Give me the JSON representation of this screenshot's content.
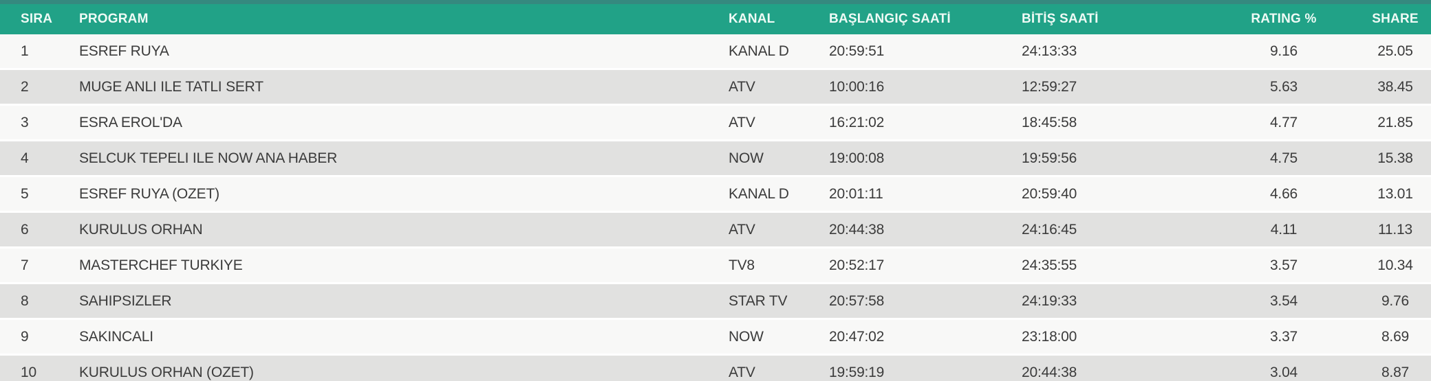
{
  "table": {
    "columns": [
      {
        "key": "sira",
        "label": "SIRA",
        "align": "left"
      },
      {
        "key": "program",
        "label": "PROGRAM",
        "align": "left"
      },
      {
        "key": "kanal",
        "label": "KANAL",
        "align": "left"
      },
      {
        "key": "start",
        "label": "BAŞLANGIÇ SAATİ",
        "align": "left"
      },
      {
        "key": "end",
        "label": "BİTİŞ SAATİ",
        "align": "left"
      },
      {
        "key": "rating",
        "label": "RATING %",
        "align": "center"
      },
      {
        "key": "share",
        "label": "SHARE",
        "align": "center"
      }
    ],
    "rows": [
      {
        "sira": "1",
        "program": "ESREF RUYA",
        "kanal": "KANAL D",
        "start": "20:59:51",
        "end": "24:13:33",
        "rating": "9.16",
        "share": "25.05"
      },
      {
        "sira": "2",
        "program": "MUGE ANLI ILE TATLI SERT",
        "kanal": "ATV",
        "start": "10:00:16",
        "end": "12:59:27",
        "rating": "5.63",
        "share": "38.45"
      },
      {
        "sira": "3",
        "program": "ESRA EROL'DA",
        "kanal": "ATV",
        "start": "16:21:02",
        "end": "18:45:58",
        "rating": "4.77",
        "share": "21.85"
      },
      {
        "sira": "4",
        "program": "SELCUK TEPELI ILE NOW ANA HABER",
        "kanal": "NOW",
        "start": "19:00:08",
        "end": "19:59:56",
        "rating": "4.75",
        "share": "15.38"
      },
      {
        "sira": "5",
        "program": "ESREF RUYA (OZET)",
        "kanal": "KANAL D",
        "start": "20:01:11",
        "end": "20:59:40",
        "rating": "4.66",
        "share": "13.01"
      },
      {
        "sira": "6",
        "program": "KURULUS ORHAN",
        "kanal": "ATV",
        "start": "20:44:38",
        "end": "24:16:45",
        "rating": "4.11",
        "share": "11.13"
      },
      {
        "sira": "7",
        "program": "MASTERCHEF TURKIYE",
        "kanal": "TV8",
        "start": "20:52:17",
        "end": "24:35:55",
        "rating": "3.57",
        "share": "10.34"
      },
      {
        "sira": "8",
        "program": "SAHIPSIZLER",
        "kanal": "STAR TV",
        "start": "20:57:58",
        "end": "24:19:33",
        "rating": "3.54",
        "share": "9.76"
      },
      {
        "sira": "9",
        "program": "SAKINCALI",
        "kanal": "NOW",
        "start": "20:47:02",
        "end": "23:18:00",
        "rating": "3.37",
        "share": "8.69"
      },
      {
        "sira": "10",
        "program": "KURULUS ORHAN (OZET)",
        "kanal": "ATV",
        "start": "19:59:19",
        "end": "20:44:38",
        "rating": "3.04",
        "share": "8.87"
      }
    ]
  },
  "colors": {
    "header_bg": "#21a287",
    "top_strip": "#35897f",
    "header_text": "#eefaf5",
    "row_odd_bg": "#f8f8f7",
    "row_even_bg": "#e1e1e0",
    "row_text": "#3b3b3b"
  }
}
